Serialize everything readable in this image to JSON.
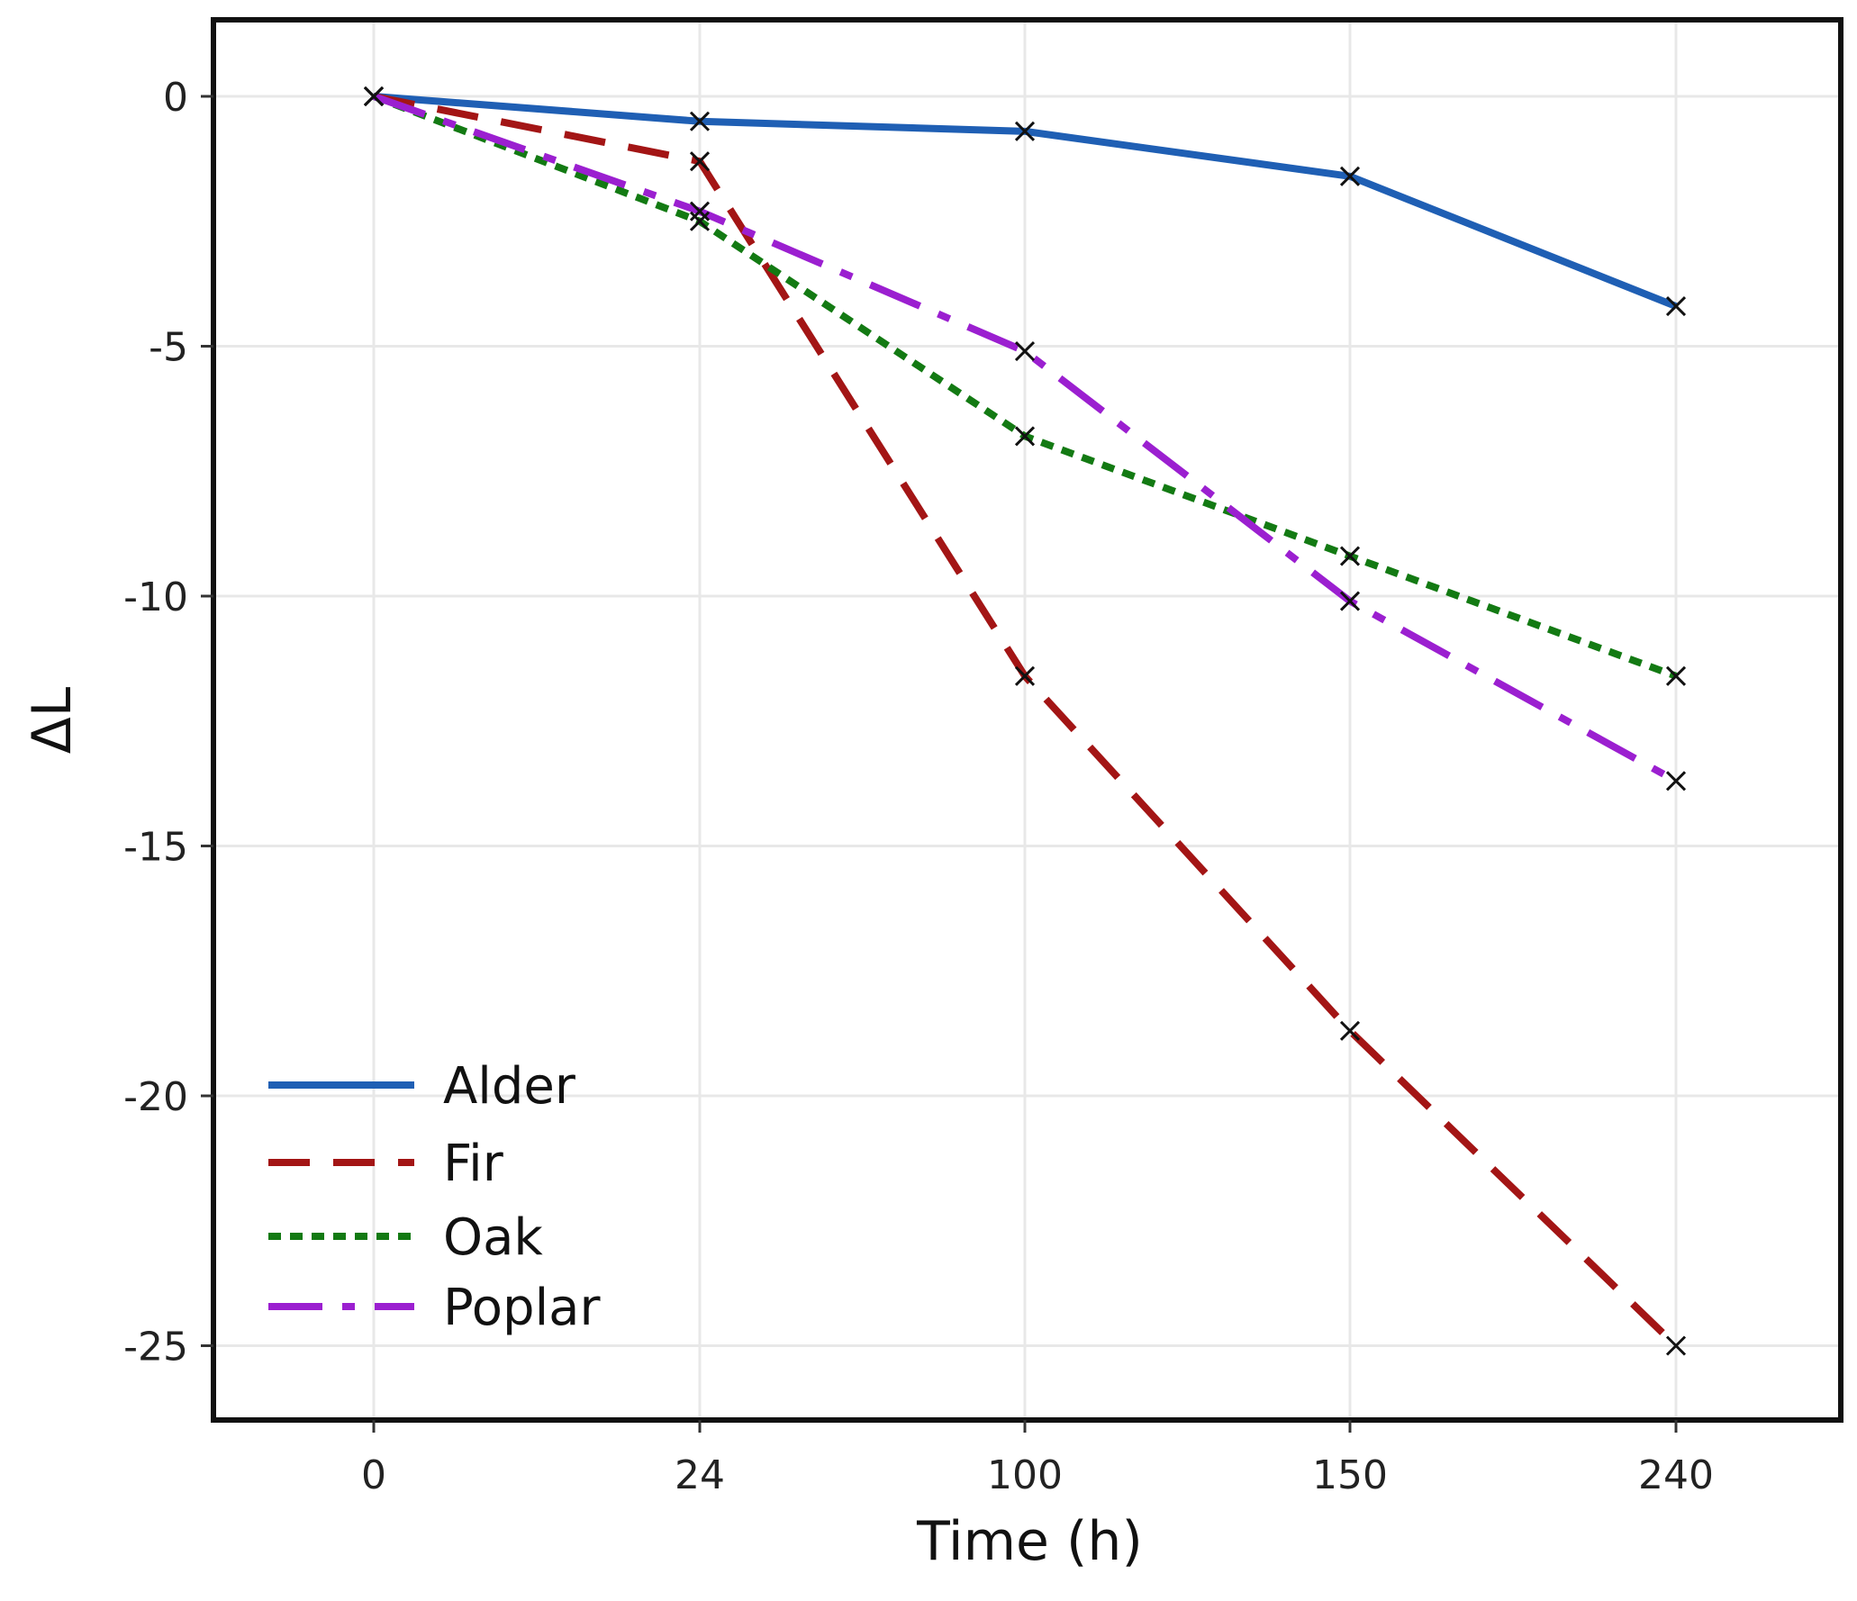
{
  "chart_data": {
    "type": "line",
    "title": "",
    "xlabel": "Time (h)",
    "ylabel": "ΔL",
    "categories": [
      "0",
      "24",
      "100",
      "150",
      "240"
    ],
    "ylim": [
      -26.2,
      1.6
    ],
    "yticks": [
      0,
      -5,
      -10,
      -15,
      -20,
      -25
    ],
    "ytick_labels": [
      "0",
      "-5",
      "-10",
      "-15",
      "-20",
      "-25"
    ],
    "grid": true,
    "legend_position": "bottom-left",
    "marker": "x",
    "series": [
      {
        "name": "Alder",
        "color": "#1f5fb4",
        "dash": "solid",
        "values": [
          0,
          -0.5,
          -0.7,
          -1.6,
          -4.2
        ]
      },
      {
        "name": "Fir",
        "color": "#a31515",
        "dash": "dashed",
        "values": [
          0,
          -1.3,
          -11.6,
          -18.7,
          -25.0
        ]
      },
      {
        "name": "Oak",
        "color": "#137a13",
        "dash": "dotted",
        "values": [
          0,
          -2.5,
          -6.8,
          -9.2,
          -11.6
        ]
      },
      {
        "name": "Poplar",
        "color": "#9b1fd0",
        "dash": "dash-dot",
        "values": [
          0,
          -2.3,
          -5.1,
          -10.1,
          -13.7
        ]
      }
    ]
  }
}
